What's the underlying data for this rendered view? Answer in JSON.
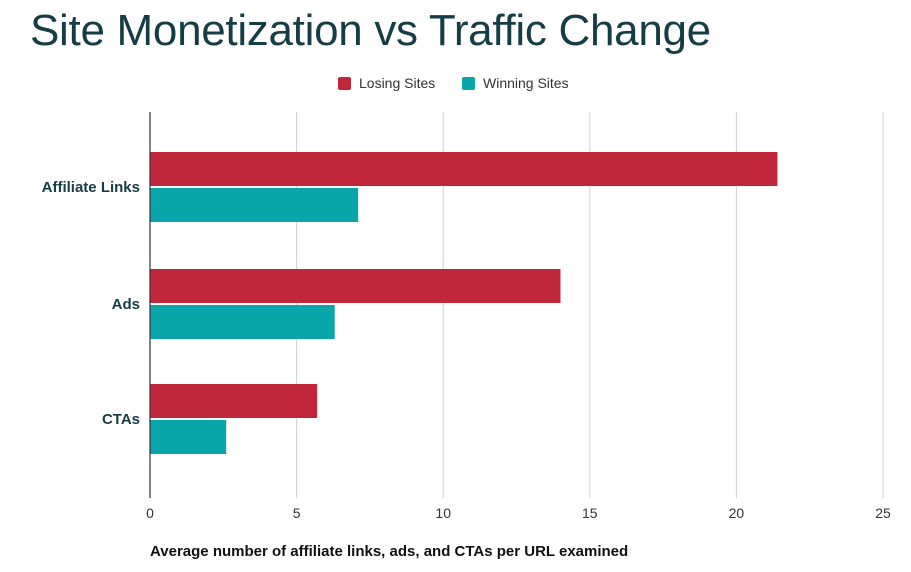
{
  "chart_data": {
    "type": "bar",
    "orientation": "horizontal",
    "title": "Site Monetization vs Traffic Change",
    "categories": [
      "Affiliate Links",
      "Ads",
      "CTAs"
    ],
    "series": [
      {
        "name": "Losing Sites",
        "color": "#c1273a",
        "values": [
          21.4,
          14.0,
          5.7
        ]
      },
      {
        "name": "Winning Sites",
        "color": "#0aa5a8",
        "values": [
          7.1,
          6.3,
          2.6
        ]
      }
    ],
    "xlabel": "Average number of affiliate links, ads, and CTAs per URL examined",
    "ylabel": "",
    "xlim": [
      0,
      25
    ],
    "xticks": [
      0,
      5,
      10,
      15,
      20,
      25
    ],
    "grid": true,
    "legend_position": "top-center"
  }
}
